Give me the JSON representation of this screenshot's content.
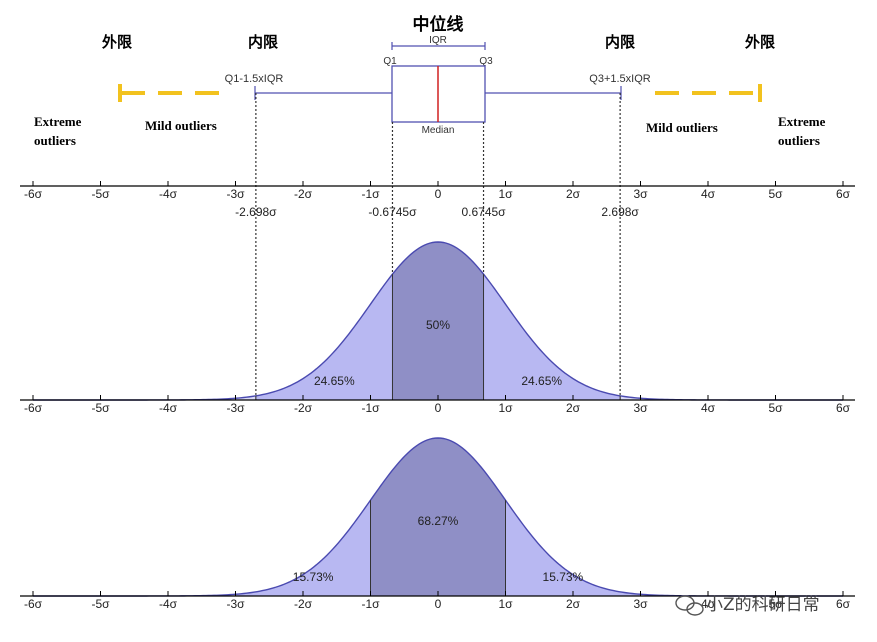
{
  "labels": {
    "outer_left": "外限",
    "inner_left": "内限",
    "median_title": "中位线",
    "inner_right": "内限",
    "outer_right": "外限",
    "iqr": "IQR",
    "q1": "Q1",
    "q3": "Q3",
    "median": "Median",
    "lower_fence": "Q1-1.5xIQR",
    "upper_fence": "Q3+1.5xIQR",
    "extreme_outliers_left": [
      "Extreme",
      "outliers"
    ],
    "extreme_outliers_right": [
      "Extreme",
      "outliers"
    ],
    "mild_outliers_left": "Mild outliers",
    "mild_outliers_right": "Mild outliers"
  },
  "colors": {
    "fence_dash": "#f2c21e",
    "box_line": "#5050b0",
    "median_line": "#d02020",
    "fill_light": "#b8b8f2",
    "fill_dark": "#8f8fc6",
    "curve": "#4a4ab0",
    "axis": "#000000",
    "sigma_label": "#2a2aa8"
  },
  "axis_ticks": [
    "-6σ",
    "-5σ",
    "-4σ",
    "-3σ",
    "-2σ",
    "-1σ",
    "0",
    "1σ",
    "2σ",
    "3σ",
    "4σ",
    "5σ",
    "6σ"
  ],
  "sigma_marks": [
    {
      "value": -2.698,
      "label": "-2.698σ"
    },
    {
      "value": -0.6745,
      "label": "-0.6745σ"
    },
    {
      "value": 0.6745,
      "label": "0.6745σ"
    },
    {
      "value": 2.698,
      "label": "2.698σ"
    }
  ],
  "chart_data": [
    {
      "type": "area",
      "distribution": "normal",
      "x_range": [
        -6,
        6
      ],
      "regions": [
        {
          "from": -2.698,
          "to": -0.6745,
          "value": "24.65%"
        },
        {
          "from": -0.6745,
          "to": 0.6745,
          "value": "50%"
        },
        {
          "from": 0.6745,
          "to": 2.698,
          "value": "24.65%"
        }
      ]
    },
    {
      "type": "area",
      "distribution": "normal",
      "x_range": [
        -6,
        6
      ],
      "regions": [
        {
          "from": -3,
          "to": -1,
          "value": "15.73%"
        },
        {
          "from": -1,
          "to": 1,
          "value": "68.27%"
        },
        {
          "from": 1,
          "to": 3,
          "value": "15.73%"
        }
      ]
    }
  ],
  "watermark": "小Z的科研日常"
}
